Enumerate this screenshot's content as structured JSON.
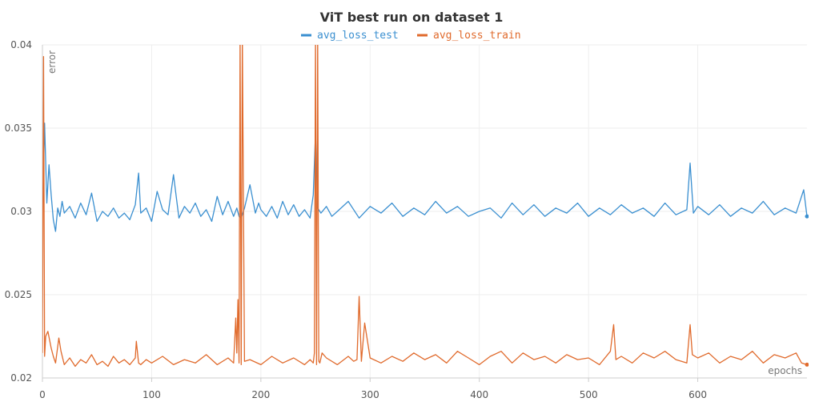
{
  "chart_data": {
    "type": "line",
    "title": "ViT best run on dataset 1",
    "xlabel": "epochs",
    "ylabel": "error",
    "xlim": [
      0,
      700
    ],
    "ylim": [
      0.02,
      0.04
    ],
    "x_ticks": [
      0,
      100,
      200,
      300,
      400,
      500,
      600
    ],
    "y_ticks": [
      0.02,
      0.025,
      0.03,
      0.035,
      0.04
    ],
    "y_tick_labels": [
      "0.02",
      "0.025",
      "0.03",
      "0.035",
      "0.04"
    ],
    "grid": true,
    "legend_position": "top-center",
    "colors": {
      "avg_loss_test": "#3a8fd0",
      "avg_loss_train": "#e06a2c"
    },
    "series": [
      {
        "name": "avg_loss_test",
        "x": [
          0,
          2,
          4,
          6,
          8,
          10,
          12,
          14,
          16,
          18,
          20,
          25,
          30,
          35,
          40,
          45,
          50,
          55,
          60,
          65,
          70,
          75,
          80,
          85,
          88,
          90,
          95,
          100,
          105,
          110,
          115,
          120,
          125,
          130,
          135,
          140,
          145,
          150,
          155,
          160,
          165,
          170,
          175,
          178,
          180,
          182,
          185,
          190,
          195,
          198,
          200,
          205,
          210,
          215,
          220,
          225,
          230,
          235,
          240,
          245,
          248,
          250,
          252,
          255,
          260,
          265,
          270,
          280,
          290,
          300,
          310,
          320,
          330,
          340,
          350,
          360,
          370,
          380,
          390,
          400,
          410,
          420,
          430,
          440,
          450,
          460,
          470,
          480,
          490,
          500,
          510,
          520,
          530,
          540,
          550,
          560,
          570,
          580,
          590,
          593,
          596,
          600,
          610,
          620,
          630,
          640,
          650,
          660,
          670,
          680,
          690,
          697,
          700
        ],
        "y": [
          0.0295,
          0.0353,
          0.0305,
          0.0328,
          0.031,
          0.0295,
          0.0288,
          0.0302,
          0.0297,
          0.0306,
          0.0299,
          0.0303,
          0.0296,
          0.0305,
          0.0298,
          0.0311,
          0.0294,
          0.03,
          0.0297,
          0.0302,
          0.0296,
          0.0299,
          0.0295,
          0.0304,
          0.0323,
          0.0299,
          0.0302,
          0.0294,
          0.0312,
          0.0301,
          0.0298,
          0.0322,
          0.0296,
          0.0303,
          0.0299,
          0.0305,
          0.0297,
          0.0301,
          0.0294,
          0.0309,
          0.0298,
          0.0306,
          0.0297,
          0.0302,
          0.0297,
          0.0296,
          0.0302,
          0.0316,
          0.0299,
          0.0305,
          0.0301,
          0.0297,
          0.0303,
          0.0296,
          0.0306,
          0.0298,
          0.0304,
          0.0297,
          0.0301,
          0.0296,
          0.031,
          0.0347,
          0.0302,
          0.0299,
          0.0303,
          0.0297,
          0.03,
          0.0306,
          0.0296,
          0.0303,
          0.0299,
          0.0305,
          0.0297,
          0.0302,
          0.0298,
          0.0306,
          0.0299,
          0.0303,
          0.0297,
          0.03,
          0.0302,
          0.0296,
          0.0305,
          0.0298,
          0.0304,
          0.0297,
          0.0302,
          0.0299,
          0.0305,
          0.0297,
          0.0302,
          0.0298,
          0.0304,
          0.0299,
          0.0302,
          0.0297,
          0.0305,
          0.0298,
          0.0301,
          0.0329,
          0.0299,
          0.0303,
          0.0298,
          0.0304,
          0.0297,
          0.0302,
          0.0299,
          0.0306,
          0.0298,
          0.0302,
          0.0299,
          0.0313,
          0.0297
        ]
      },
      {
        "name": "avg_loss_train",
        "x": [
          0,
          1,
          2,
          3,
          5,
          8,
          10,
          12,
          15,
          17,
          20,
          25,
          30,
          35,
          40,
          45,
          50,
          55,
          60,
          65,
          70,
          75,
          80,
          85,
          86,
          88,
          90,
          95,
          100,
          110,
          120,
          130,
          140,
          150,
          160,
          170,
          175,
          177,
          178,
          179,
          180,
          181,
          182,
          183,
          185,
          190,
          200,
          210,
          220,
          230,
          240,
          245,
          248,
          249,
          250,
          251,
          252,
          253,
          254,
          256,
          260,
          270,
          280,
          285,
          288,
          290,
          292,
          295,
          300,
          310,
          320,
          330,
          340,
          350,
          360,
          370,
          380,
          390,
          400,
          410,
          420,
          430,
          440,
          450,
          460,
          470,
          480,
          490,
          500,
          510,
          520,
          523,
          525,
          530,
          540,
          550,
          560,
          570,
          580,
          590,
          593,
          595,
          600,
          610,
          620,
          630,
          640,
          650,
          660,
          670,
          680,
          690,
          695,
          700
        ],
        "y": [
          0.0215,
          0.0393,
          0.0213,
          0.0225,
          0.0228,
          0.0218,
          0.0213,
          0.0209,
          0.0224,
          0.0216,
          0.0208,
          0.0212,
          0.0207,
          0.0211,
          0.0209,
          0.0214,
          0.0208,
          0.021,
          0.0207,
          0.0213,
          0.0209,
          0.0211,
          0.0208,
          0.0212,
          0.0222,
          0.0209,
          0.0208,
          0.0211,
          0.0209,
          0.0213,
          0.0208,
          0.0211,
          0.0209,
          0.0214,
          0.0208,
          0.0212,
          0.0209,
          0.0236,
          0.0215,
          0.0247,
          0.0209,
          0.0405,
          0.0208,
          0.0405,
          0.021,
          0.0211,
          0.0208,
          0.0213,
          0.0209,
          0.0212,
          0.0208,
          0.0211,
          0.0209,
          0.0215,
          0.0405,
          0.0208,
          0.0405,
          0.021,
          0.0209,
          0.0215,
          0.0212,
          0.0208,
          0.0213,
          0.021,
          0.0211,
          0.0249,
          0.021,
          0.0233,
          0.0212,
          0.0209,
          0.0213,
          0.021,
          0.0215,
          0.0211,
          0.0214,
          0.0209,
          0.0216,
          0.0212,
          0.0208,
          0.0213,
          0.0216,
          0.0209,
          0.0215,
          0.0211,
          0.0213,
          0.0209,
          0.0214,
          0.0211,
          0.0212,
          0.0208,
          0.0216,
          0.0232,
          0.0211,
          0.0213,
          0.0209,
          0.0215,
          0.0212,
          0.0216,
          0.0211,
          0.0209,
          0.0232,
          0.0214,
          0.0212,
          0.0215,
          0.0209,
          0.0213,
          0.0211,
          0.0216,
          0.0209,
          0.0214,
          0.0212,
          0.0215,
          0.0209,
          0.0208
        ]
      }
    ]
  }
}
